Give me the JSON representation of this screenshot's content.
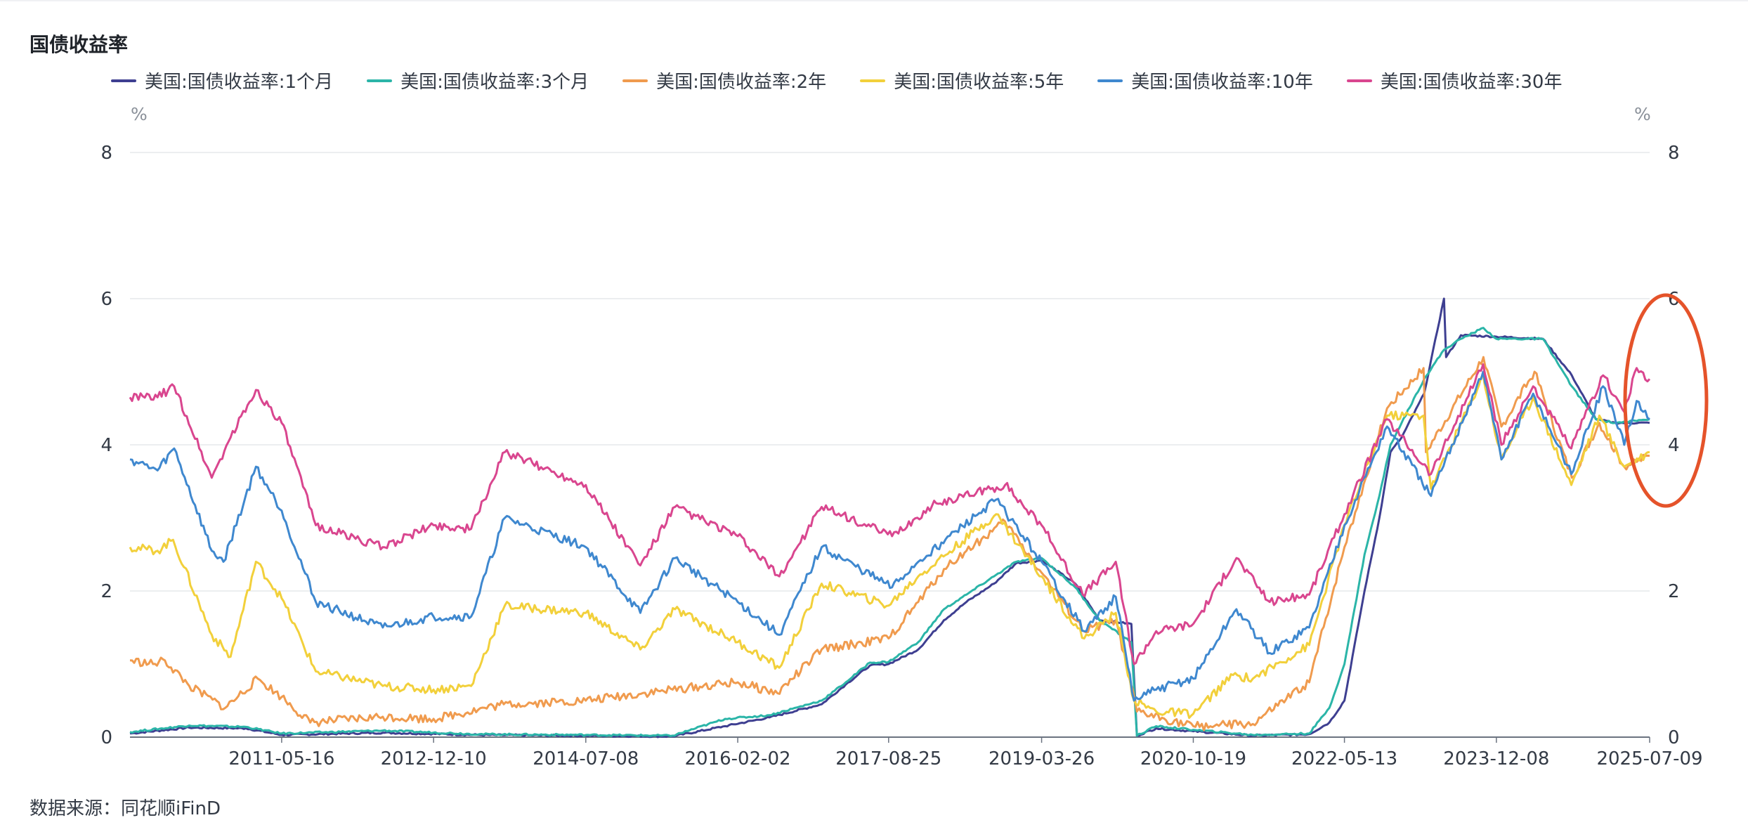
{
  "title": "国债收益率",
  "unit_left": "%",
  "unit_right": "%",
  "source": "数据来源：同花顺iFinD",
  "chart_data": {
    "type": "line",
    "title": "国债收益率",
    "xlabel": "",
    "ylabel": "%",
    "ylim": [
      0,
      8
    ],
    "yticks": [
      "0",
      "2",
      "4",
      "6",
      "8"
    ],
    "x_tick_labels": [
      "2011-05-16",
      "2012-12-10",
      "2014-07-08",
      "2016-02-02",
      "2017-08-25",
      "2019-03-26",
      "2020-10-19",
      "2022-05-13",
      "2023-12-08",
      "2025-07-09"
    ],
    "x_range": [
      "2009-10-20",
      "2025-07-09"
    ],
    "grid": "horizontal",
    "legend_position": "top",
    "series": [
      {
        "name": "美国:国债收益率:1个月",
        "color": "#3e3f91",
        "points": [
          [
            "2009-10-20",
            0.05
          ],
          [
            "2010-06-01",
            0.13
          ],
          [
            "2011-01-01",
            0.12
          ],
          [
            "2011-05-16",
            0.03
          ],
          [
            "2012-06-01",
            0.06
          ],
          [
            "2013-06-01",
            0.03
          ],
          [
            "2014-07-08",
            0.02
          ],
          [
            "2015-06-01",
            0.01
          ],
          [
            "2015-12-16",
            0.15
          ],
          [
            "2016-06-01",
            0.27
          ],
          [
            "2016-12-15",
            0.45
          ],
          [
            "2017-03-16",
            0.72
          ],
          [
            "2017-06-15",
            0.98
          ],
          [
            "2017-08-25",
            1.0
          ],
          [
            "2017-12-15",
            1.2
          ],
          [
            "2018-03-22",
            1.6
          ],
          [
            "2018-06-15",
            1.85
          ],
          [
            "2018-09-27",
            2.1
          ],
          [
            "2018-12-20",
            2.38
          ],
          [
            "2019-03-26",
            2.42
          ],
          [
            "2019-07-31",
            2.1
          ],
          [
            "2019-10-31",
            1.6
          ],
          [
            "2020-02-28",
            1.55
          ],
          [
            "2020-03-20",
            0.02
          ],
          [
            "2020-06-01",
            0.12
          ],
          [
            "2020-10-19",
            0.08
          ],
          [
            "2021-06-01",
            0.02
          ],
          [
            "2021-12-31",
            0.04
          ],
          [
            "2022-03-17",
            0.2
          ],
          [
            "2022-05-13",
            0.5
          ],
          [
            "2022-07-28",
            2.0
          ],
          [
            "2022-09-22",
            3.0
          ],
          [
            "2022-11-03",
            3.9
          ],
          [
            "2022-12-15",
            4.1
          ],
          [
            "2023-03-10",
            4.7
          ],
          [
            "2023-05-24",
            6.0
          ],
          [
            "2023-06-01",
            5.2
          ],
          [
            "2023-07-27",
            5.5
          ],
          [
            "2023-12-08",
            5.48
          ],
          [
            "2024-06-01",
            5.45
          ],
          [
            "2024-09-18",
            4.95
          ],
          [
            "2024-12-18",
            4.35
          ],
          [
            "2025-03-01",
            4.3
          ],
          [
            "2025-07-09",
            4.3
          ]
        ]
      },
      {
        "name": "美国:国债收益率:3个月",
        "color": "#2bb5a8",
        "points": [
          [
            "2009-10-20",
            0.07
          ],
          [
            "2010-06-01",
            0.16
          ],
          [
            "2011-01-01",
            0.14
          ],
          [
            "2011-05-16",
            0.05
          ],
          [
            "2012-06-01",
            0.09
          ],
          [
            "2013-06-01",
            0.04
          ],
          [
            "2014-07-08",
            0.03
          ],
          [
            "2015-06-01",
            0.02
          ],
          [
            "2015-12-16",
            0.25
          ],
          [
            "2016-06-01",
            0.3
          ],
          [
            "2016-12-15",
            0.5
          ],
          [
            "2017-03-16",
            0.75
          ],
          [
            "2017-06-15",
            1.02
          ],
          [
            "2017-08-25",
            1.03
          ],
          [
            "2017-12-15",
            1.3
          ],
          [
            "2018-03-22",
            1.75
          ],
          [
            "2018-06-15",
            1.95
          ],
          [
            "2018-09-27",
            2.2
          ],
          [
            "2018-12-20",
            2.4
          ],
          [
            "2019-03-26",
            2.45
          ],
          [
            "2019-07-31",
            2.05
          ],
          [
            "2019-10-31",
            1.6
          ],
          [
            "2020-02-28",
            1.3
          ],
          [
            "2020-03-20",
            0.02
          ],
          [
            "2020-06-01",
            0.15
          ],
          [
            "2020-10-19",
            0.1
          ],
          [
            "2021-06-01",
            0.03
          ],
          [
            "2021-12-31",
            0.05
          ],
          [
            "2022-03-17",
            0.4
          ],
          [
            "2022-05-13",
            1.0
          ],
          [
            "2022-07-28",
            2.5
          ],
          [
            "2022-09-22",
            3.3
          ],
          [
            "2022-11-03",
            4.0
          ],
          [
            "2022-12-15",
            4.3
          ],
          [
            "2023-03-10",
            4.9
          ],
          [
            "2023-05-24",
            5.3
          ],
          [
            "2023-07-27",
            5.45
          ],
          [
            "2023-10-20",
            5.6
          ],
          [
            "2023-12-08",
            5.45
          ],
          [
            "2024-06-01",
            5.45
          ],
          [
            "2024-09-18",
            4.8
          ],
          [
            "2024-12-18",
            4.35
          ],
          [
            "2025-03-01",
            4.3
          ],
          [
            "2025-07-09",
            4.35
          ]
        ]
      },
      {
        "name": "美国:国债收益率:2年",
        "color": "#f09b4e",
        "points": [
          [
            "2009-10-20",
            1.05
          ],
          [
            "2010-01-15",
            1.0
          ],
          [
            "2010-03-01",
            1.05
          ],
          [
            "2010-06-01",
            0.7
          ],
          [
            "2010-10-15",
            0.4
          ],
          [
            "2011-02-15",
            0.8
          ],
          [
            "2011-05-16",
            0.55
          ],
          [
            "2011-09-01",
            0.2
          ],
          [
            "2012-06-01",
            0.28
          ],
          [
            "2012-12-10",
            0.25
          ],
          [
            "2013-09-01",
            0.45
          ],
          [
            "2014-07-08",
            0.5
          ],
          [
            "2015-06-01",
            0.65
          ],
          [
            "2016-02-02",
            0.75
          ],
          [
            "2016-07-01",
            0.6
          ],
          [
            "2016-12-15",
            1.2
          ],
          [
            "2017-08-25",
            1.35
          ],
          [
            "2017-12-15",
            1.85
          ],
          [
            "2018-03-22",
            2.3
          ],
          [
            "2018-06-15",
            2.55
          ],
          [
            "2018-11-08",
            2.95
          ],
          [
            "2019-03-26",
            2.25
          ],
          [
            "2019-09-01",
            1.45
          ],
          [
            "2019-12-31",
            1.6
          ],
          [
            "2020-03-20",
            0.35
          ],
          [
            "2020-10-19",
            0.15
          ],
          [
            "2021-06-01",
            0.18
          ],
          [
            "2021-12-31",
            0.75
          ],
          [
            "2022-05-13",
            2.6
          ],
          [
            "2022-10-21",
            4.5
          ],
          [
            "2023-03-08",
            5.05
          ],
          [
            "2023-03-17",
            3.9
          ],
          [
            "2023-10-20",
            5.2
          ],
          [
            "2023-12-27",
            4.25
          ],
          [
            "2024-04-30",
            5.0
          ],
          [
            "2024-09-18",
            3.55
          ],
          [
            "2024-12-31",
            4.3
          ],
          [
            "2025-04-04",
            3.7
          ],
          [
            "2025-07-09",
            3.85
          ]
        ]
      },
      {
        "name": "美国:国债收益率:5年",
        "color": "#f2d03b",
        "points": [
          [
            "2009-10-20",
            2.6
          ],
          [
            "2010-02-01",
            2.55
          ],
          [
            "2010-04-01",
            2.7
          ],
          [
            "2010-08-25",
            1.4
          ],
          [
            "2010-11-04",
            1.1
          ],
          [
            "2011-02-08",
            2.4
          ],
          [
            "2011-05-16",
            1.9
          ],
          [
            "2011-09-22",
            0.9
          ],
          [
            "2012-06-01",
            0.7
          ],
          [
            "2012-12-10",
            0.65
          ],
          [
            "2013-05-01",
            0.7
          ],
          [
            "2013-09-05",
            1.8
          ],
          [
            "2014-07-08",
            1.7
          ],
          [
            "2015-01-30",
            1.2
          ],
          [
            "2015-06-10",
            1.75
          ],
          [
            "2016-02-02",
            1.3
          ],
          [
            "2016-07-08",
            0.95
          ],
          [
            "2016-12-15",
            2.1
          ],
          [
            "2017-08-25",
            1.8
          ],
          [
            "2017-12-15",
            2.2
          ],
          [
            "2018-10-05",
            3.05
          ],
          [
            "2019-03-26",
            2.2
          ],
          [
            "2019-09-03",
            1.35
          ],
          [
            "2019-12-31",
            1.7
          ],
          [
            "2020-03-09",
            0.5
          ],
          [
            "2020-06-01",
            0.35
          ],
          [
            "2020-10-19",
            0.32
          ],
          [
            "2021-03-18",
            0.85
          ],
          [
            "2021-06-01",
            0.8
          ],
          [
            "2021-12-31",
            1.26
          ],
          [
            "2022-05-13",
            2.9
          ],
          [
            "2022-10-21",
            4.4
          ],
          [
            "2023-03-08",
            4.4
          ],
          [
            "2023-04-05",
            3.4
          ],
          [
            "2023-10-19",
            4.95
          ],
          [
            "2023-12-27",
            3.8
          ],
          [
            "2024-04-25",
            4.65
          ],
          [
            "2024-09-16",
            3.45
          ],
          [
            "2024-12-31",
            4.4
          ],
          [
            "2025-04-04",
            3.7
          ],
          [
            "2025-07-09",
            3.9
          ]
        ]
      },
      {
        "name": "美国:国债收益率:10年",
        "color": "#3f88cf",
        "points": [
          [
            "2009-10-20",
            3.8
          ],
          [
            "2010-02-01",
            3.65
          ],
          [
            "2010-04-05",
            3.95
          ],
          [
            "2010-08-25",
            2.55
          ],
          [
            "2010-10-08",
            2.4
          ],
          [
            "2011-02-08",
            3.7
          ],
          [
            "2011-05-16",
            3.1
          ],
          [
            "2011-09-22",
            1.85
          ],
          [
            "2012-06-01",
            1.5
          ],
          [
            "2012-12-10",
            1.65
          ],
          [
            "2013-05-01",
            1.65
          ],
          [
            "2013-09-05",
            3.0
          ],
          [
            "2014-07-08",
            2.6
          ],
          [
            "2015-01-30",
            1.7
          ],
          [
            "2015-06-10",
            2.45
          ],
          [
            "2016-02-02",
            1.85
          ],
          [
            "2016-07-08",
            1.4
          ],
          [
            "2016-12-15",
            2.6
          ],
          [
            "2017-09-07",
            2.05
          ],
          [
            "2017-12-15",
            2.4
          ],
          [
            "2018-10-05",
            3.25
          ],
          [
            "2019-03-26",
            2.4
          ],
          [
            "2019-09-03",
            1.45
          ],
          [
            "2019-12-31",
            1.92
          ],
          [
            "2020-03-09",
            0.5
          ],
          [
            "2020-06-01",
            0.65
          ],
          [
            "2020-10-19",
            0.8
          ],
          [
            "2021-03-31",
            1.75
          ],
          [
            "2021-08-04",
            1.15
          ],
          [
            "2021-12-31",
            1.5
          ],
          [
            "2022-05-13",
            2.9
          ],
          [
            "2022-10-21",
            4.25
          ],
          [
            "2023-04-05",
            3.3
          ],
          [
            "2023-10-19",
            5.0
          ],
          [
            "2023-12-27",
            3.8
          ],
          [
            "2024-04-25",
            4.7
          ],
          [
            "2024-09-16",
            3.6
          ],
          [
            "2025-01-14",
            4.8
          ],
          [
            "2025-04-04",
            4.0
          ],
          [
            "2025-05-21",
            4.6
          ],
          [
            "2025-07-09",
            4.35
          ]
        ]
      },
      {
        "name": "美国:国债收益率:30年",
        "color": "#d9468f",
        "points": [
          [
            "2009-10-20",
            4.65
          ],
          [
            "2010-02-01",
            4.65
          ],
          [
            "2010-04-05",
            4.8
          ],
          [
            "2010-08-25",
            3.55
          ],
          [
            "2010-11-04",
            4.1
          ],
          [
            "2011-02-08",
            4.75
          ],
          [
            "2011-05-16",
            4.3
          ],
          [
            "2011-09-22",
            2.9
          ],
          [
            "2012-06-01",
            2.6
          ],
          [
            "2012-12-10",
            2.9
          ],
          [
            "2013-05-01",
            2.85
          ],
          [
            "2013-09-05",
            3.9
          ],
          [
            "2014-07-08",
            3.45
          ],
          [
            "2015-01-30",
            2.35
          ],
          [
            "2015-06-10",
            3.15
          ],
          [
            "2016-02-02",
            2.75
          ],
          [
            "2016-07-08",
            2.2
          ],
          [
            "2016-12-15",
            3.15
          ],
          [
            "2017-09-07",
            2.75
          ],
          [
            "2018-02-21",
            3.2
          ],
          [
            "2018-11-08",
            3.45
          ],
          [
            "2019-03-26",
            2.9
          ],
          [
            "2019-08-28",
            1.95
          ],
          [
            "2019-12-31",
            2.4
          ],
          [
            "2020-03-09",
            1.0
          ],
          [
            "2020-06-01",
            1.45
          ],
          [
            "2020-10-19",
            1.55
          ],
          [
            "2021-03-31",
            2.45
          ],
          [
            "2021-08-04",
            1.85
          ],
          [
            "2021-12-31",
            1.95
          ],
          [
            "2022-05-13",
            3.05
          ],
          [
            "2022-10-21",
            4.35
          ],
          [
            "2023-04-05",
            3.6
          ],
          [
            "2023-10-19",
            5.1
          ],
          [
            "2023-12-27",
            4.0
          ],
          [
            "2024-04-25",
            4.8
          ],
          [
            "2024-09-16",
            3.95
          ],
          [
            "2025-01-14",
            4.95
          ],
          [
            "2025-04-04",
            4.45
          ],
          [
            "2025-05-21",
            5.05
          ],
          [
            "2025-07-09",
            4.9
          ]
        ]
      }
    ]
  },
  "annotation": {
    "color": "#e5532a",
    "shape": "ellipse"
  }
}
